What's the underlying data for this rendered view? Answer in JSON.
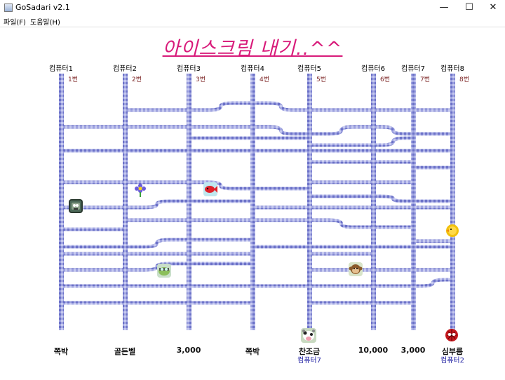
{
  "window": {
    "title": "GoSadari v2.1",
    "minimize": "—",
    "maximize": "☐",
    "close": "✕"
  },
  "menu": [
    {
      "label": "파일(F)"
    },
    {
      "label": "도움말(H)"
    }
  ],
  "headline": "아이스크림 내기..^^",
  "players": [
    "컴퓨터1",
    "컴퓨터2",
    "컴퓨터3",
    "컴퓨터4",
    "컴퓨터5",
    "컴퓨터6",
    "컴퓨터7",
    "컴퓨터8"
  ],
  "lane_numbers": [
    "1번",
    "2번",
    "3번",
    "4번",
    "5번",
    "6번",
    "7번",
    "8번"
  ],
  "prizes": [
    "쪽박",
    "골든벨",
    "3,000",
    "쪽박",
    "찬조금",
    "10,000",
    "3,000",
    "심부름"
  ],
  "winners": [
    "",
    "",
    "",
    "",
    "컴퓨터7",
    "",
    "",
    "컴퓨터2"
  ],
  "colors": {
    "rung": "#8a8fd6",
    "headline": "#d81b7a",
    "winner": "#1a1aa0"
  },
  "tokens": [
    {
      "name": "zombie-avatar-icon",
      "lane": 0
    },
    {
      "name": "flower-icon",
      "lane": 1
    },
    {
      "name": "red-fish-icon",
      "lane": 2
    },
    {
      "name": "frog-avatar-icon",
      "lane": 1
    },
    {
      "name": "monkey-avatar-icon",
      "lane": 5
    },
    {
      "name": "yellow-chick-icon",
      "lane": 7
    },
    {
      "name": "cow-avatar-icon",
      "lane": 4
    },
    {
      "name": "spider-avatar-icon",
      "lane": 7
    }
  ]
}
